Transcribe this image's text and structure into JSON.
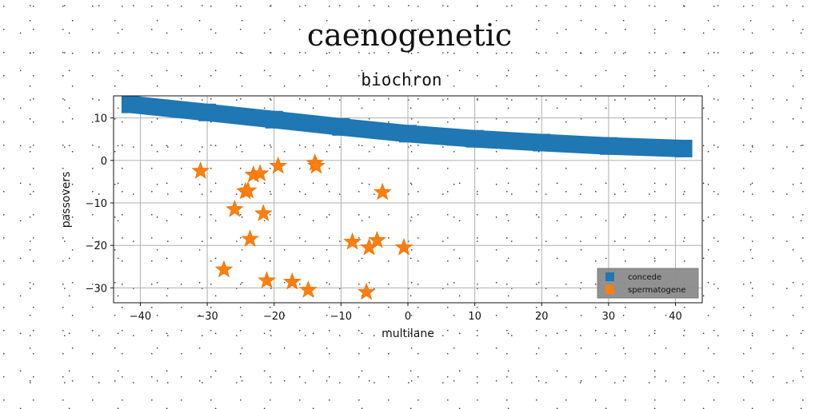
{
  "chart_data": {
    "type": "scatter",
    "title": "caenogenetic",
    "subtitle": "biochron",
    "xlabel": "multilane",
    "ylabel": "passovers",
    "xlim": [
      -44,
      44
    ],
    "ylim": [
      -33.5,
      15.2
    ],
    "xticks": [
      -40,
      -30,
      -20,
      -10,
      0,
      10,
      20,
      30,
      40
    ],
    "yticks": [
      10,
      0,
      -10,
      -20,
      -30
    ],
    "grid": true,
    "legend_position": "lower-right",
    "series": [
      {
        "name": "concede",
        "color": "#1f77b4",
        "marker": "square",
        "x": [
          -41.5,
          -30,
          -20,
          -10,
          0,
          10,
          20,
          30,
          41.2
        ],
        "y": [
          13.2,
          11.3,
          9.6,
          7.9,
          6.3,
          5.1,
          4.2,
          3.4,
          2.8
        ]
      },
      {
        "name": "spermatogene",
        "color": "#ff7f0e",
        "marker": "star",
        "x": [
          -31,
          -27.5,
          -25.9,
          -24.3,
          -23.9,
          -23.6,
          -23.1,
          -22.1,
          -21.6,
          -21.1,
          -19.4,
          -17.3,
          -14.9,
          -13.9,
          -13.7,
          -8.3,
          -6.2,
          -5.8,
          -4.6,
          -3.8,
          -0.6
        ],
        "y": [
          -2.5,
          -25.7,
          -11.5,
          -7.3,
          -7.1,
          -18.5,
          -3.4,
          -3.1,
          -12.5,
          -28.3,
          -1.3,
          -28.6,
          -30.5,
          -0.6,
          -1.3,
          -19.2,
          -31.0,
          -20.5,
          -18.8,
          -7.5,
          -20.5
        ]
      }
    ]
  }
}
